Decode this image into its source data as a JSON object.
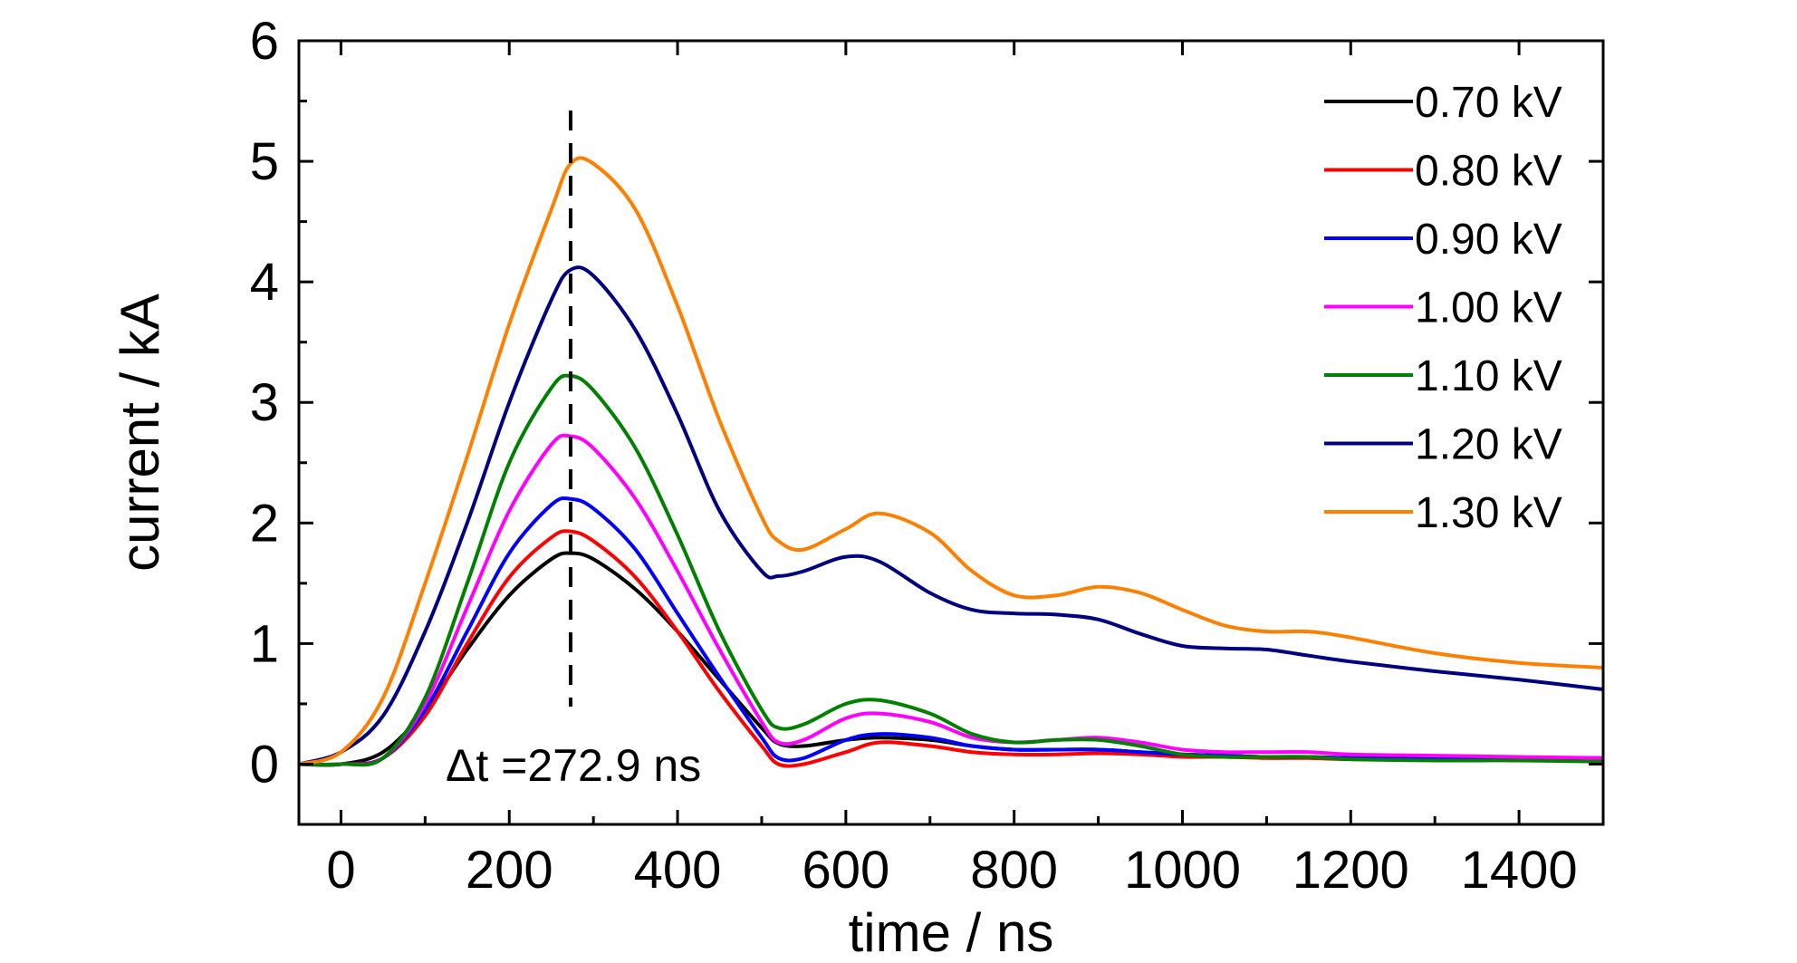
{
  "chart_data": {
    "type": "line",
    "title": "",
    "xlabel": "time / ns",
    "ylabel": "current / kA",
    "xlim": [
      -50,
      1500
    ],
    "ylim": [
      -0.5,
      6
    ],
    "xticks": [
      0,
      200,
      400,
      600,
      800,
      1000,
      1200,
      1400
    ],
    "yticks": [
      0,
      1,
      2,
      3,
      4,
      5,
      6
    ],
    "grid": false,
    "legend_position": "top-right",
    "x": [
      -50,
      0,
      50,
      100,
      150,
      200,
      250,
      272.9,
      300,
      350,
      400,
      450,
      500,
      520,
      550,
      600,
      640,
      700,
      750,
      800,
      850,
      900,
      950,
      1000,
      1050,
      1100,
      1150,
      1200,
      1300,
      1400,
      1500
    ],
    "series": [
      {
        "name": "0.70 kV",
        "color": "#000000",
        "values": [
          0.0,
          0.0,
          0.1,
          0.45,
          0.95,
          1.4,
          1.7,
          1.75,
          1.7,
          1.45,
          1.1,
          0.7,
          0.3,
          0.17,
          0.15,
          0.2,
          0.22,
          0.2,
          0.15,
          0.12,
          0.12,
          0.12,
          0.1,
          0.08,
          0.07,
          0.06,
          0.06,
          0.05,
          0.04,
          0.04,
          0.03
        ]
      },
      {
        "name": "0.80 kV",
        "color": "#ff0000",
        "values": [
          0.0,
          0.0,
          0.05,
          0.4,
          1.0,
          1.55,
          1.88,
          1.93,
          1.85,
          1.55,
          1.1,
          0.6,
          0.15,
          0.0,
          0.0,
          0.1,
          0.18,
          0.15,
          0.1,
          0.08,
          0.08,
          0.09,
          0.08,
          0.06,
          0.06,
          0.05,
          0.05,
          0.04,
          0.04,
          0.04,
          0.04
        ]
      },
      {
        "name": "0.90 kV",
        "color": "#0000ff",
        "values": [
          0.0,
          0.0,
          0.05,
          0.45,
          1.1,
          1.75,
          2.15,
          2.2,
          2.12,
          1.78,
          1.25,
          0.72,
          0.22,
          0.05,
          0.05,
          0.2,
          0.25,
          0.22,
          0.15,
          0.12,
          0.12,
          0.12,
          0.1,
          0.08,
          0.07,
          0.06,
          0.06,
          0.05,
          0.05,
          0.05,
          0.05
        ]
      },
      {
        "name": "1.00 kV",
        "color": "#ff00ff",
        "values": [
          0.0,
          0.0,
          0.05,
          0.5,
          1.3,
          2.1,
          2.65,
          2.72,
          2.62,
          2.2,
          1.6,
          0.95,
          0.35,
          0.18,
          0.2,
          0.38,
          0.42,
          0.35,
          0.22,
          0.18,
          0.2,
          0.22,
          0.18,
          0.12,
          0.1,
          0.1,
          0.1,
          0.08,
          0.07,
          0.06,
          0.05
        ]
      },
      {
        "name": "1.10 kV",
        "color": "#008000",
        "values": [
          0.0,
          0.0,
          0.05,
          0.55,
          1.5,
          2.5,
          3.12,
          3.22,
          3.1,
          2.62,
          1.9,
          1.1,
          0.45,
          0.3,
          0.33,
          0.5,
          0.53,
          0.42,
          0.25,
          0.18,
          0.2,
          0.2,
          0.15,
          0.08,
          0.06,
          0.06,
          0.06,
          0.04,
          0.03,
          0.03,
          0.02
        ]
      },
      {
        "name": "1.20 kV",
        "color": "#000080",
        "values": [
          0.0,
          0.1,
          0.4,
          1.1,
          2.0,
          3.0,
          3.85,
          4.1,
          4.05,
          3.6,
          2.9,
          2.1,
          1.6,
          1.56,
          1.6,
          1.72,
          1.68,
          1.42,
          1.28,
          1.25,
          1.24,
          1.2,
          1.08,
          0.98,
          0.96,
          0.95,
          0.9,
          0.85,
          0.77,
          0.7,
          0.62
        ]
      },
      {
        "name": "1.30 kV",
        "color": "#ff8000",
        "values": [
          0.0,
          0.1,
          0.55,
          1.5,
          2.55,
          3.65,
          4.6,
          4.98,
          4.98,
          4.6,
          3.8,
          2.85,
          2.05,
          1.85,
          1.78,
          1.95,
          2.08,
          1.92,
          1.6,
          1.4,
          1.4,
          1.47,
          1.42,
          1.28,
          1.15,
          1.1,
          1.1,
          1.05,
          0.92,
          0.84,
          0.8
        ]
      }
    ],
    "annotations": [
      {
        "text": "Δt =272.9 ns",
        "x": 272.9,
        "style": "dashed-vertical-line"
      }
    ]
  }
}
